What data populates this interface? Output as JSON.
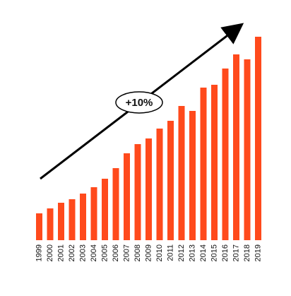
{
  "chart_data": {
    "type": "bar",
    "annotation": "+10%",
    "categories": [
      "1999",
      "2000",
      "2001",
      "2002",
      "2003",
      "2004",
      "2005",
      "2006",
      "2007",
      "2008",
      "2009",
      "2010",
      "2011",
      "2012",
      "2013",
      "2014",
      "2015",
      "2016",
      "2017",
      "2018",
      "2019"
    ],
    "values": [
      38,
      45,
      53,
      58,
      66,
      75,
      87,
      102,
      123,
      136,
      144,
      158,
      169,
      190,
      183,
      216,
      220,
      243,
      263,
      256,
      288
    ],
    "color": "#ff4a1c"
  }
}
